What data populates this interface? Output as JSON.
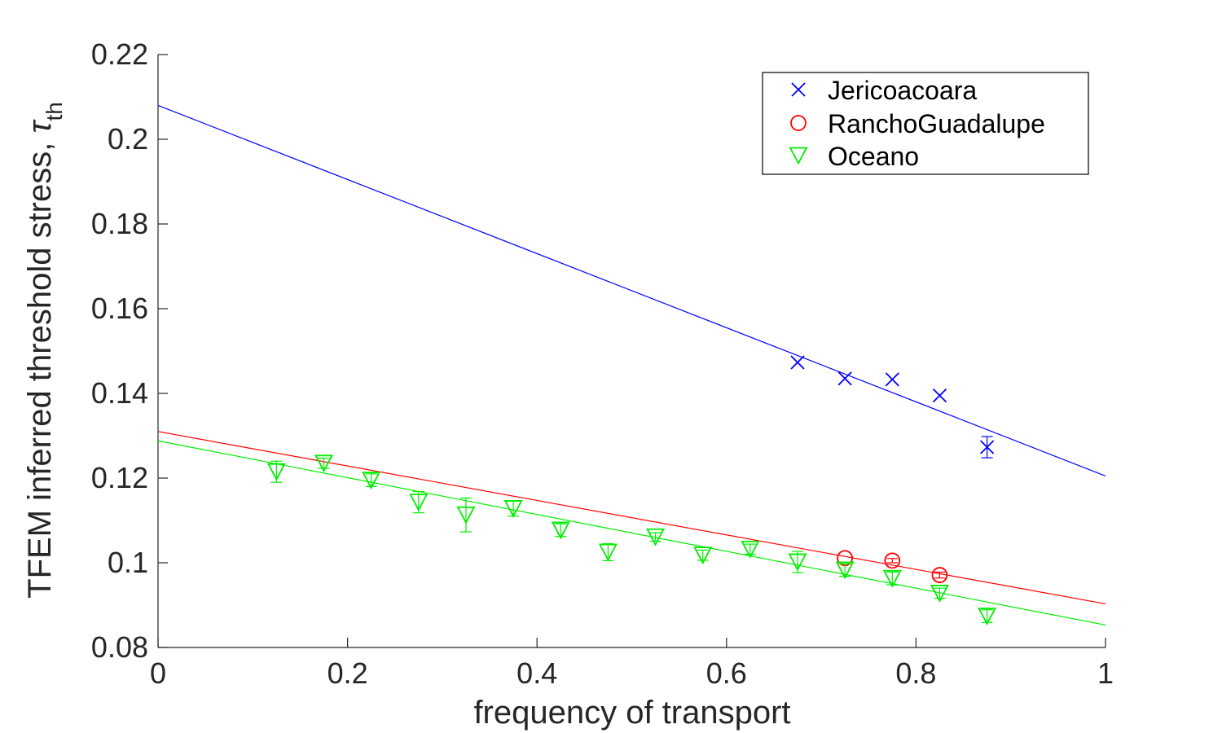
{
  "chart_data": {
    "type": "scatter",
    "title": "",
    "xlabel": "frequency of transport",
    "ylabel": "TFEM inferred threshold stress, ",
    "ylabel_symbol": "τ",
    "ylabel_subscript": "th",
    "xlim": [
      0,
      1
    ],
    "ylim": [
      0.08,
      0.22
    ],
    "x_ticks": [
      "0",
      "0.2",
      "0.4",
      "0.6",
      "0.8",
      "1"
    ],
    "y_ticks": [
      "0.08",
      "0.1",
      "0.12",
      "0.14",
      "0.16",
      "0.18",
      "0.2",
      "0.22"
    ],
    "x_tick_values": [
      0,
      0.2,
      0.4,
      0.6,
      0.8,
      1
    ],
    "y_tick_values": [
      0.08,
      0.1,
      0.12,
      0.14,
      0.16,
      0.18,
      0.2,
      0.22
    ],
    "grid": false,
    "legend_position": "top-right",
    "series": [
      {
        "name": "Jericoacoara",
        "marker": "x",
        "color": "#0000ff",
        "x": [
          0.675,
          0.725,
          0.775,
          0.825,
          0.875
        ],
        "y": [
          0.1473,
          0.1435,
          0.1433,
          0.1395,
          0.1273
        ],
        "err": [
          0.0,
          0.0,
          0.0,
          0.0,
          0.0025
        ],
        "fit": {
          "x": [
            0,
            1
          ],
          "y": [
            0.208,
            0.1205
          ]
        }
      },
      {
        "name": "RanchoGuadalupe",
        "marker": "circle",
        "color": "#ff0000",
        "x": [
          0.725,
          0.775,
          0.825
        ],
        "y": [
          0.1011,
          0.1005,
          0.0971
        ],
        "err": [
          0.0,
          0.0005,
          0.0007
        ],
        "fit": {
          "x": [
            0,
            1
          ],
          "y": [
            0.131,
            0.0903
          ]
        }
      },
      {
        "name": "Oceano",
        "marker": "triangle-down",
        "color": "#00ee00",
        "x": [
          0.125,
          0.175,
          0.225,
          0.275,
          0.325,
          0.375,
          0.425,
          0.475,
          0.525,
          0.575,
          0.625,
          0.675,
          0.725,
          0.775,
          0.825,
          0.875
        ],
        "y": [
          0.1215,
          0.1235,
          0.1195,
          0.1143,
          0.1113,
          0.1128,
          0.1077,
          0.1025,
          0.1061,
          0.1018,
          0.1032,
          0.1002,
          0.0983,
          0.0963,
          0.0928,
          0.0874
        ],
        "err": [
          0.0025,
          0.0012,
          0.0015,
          0.0025,
          0.004,
          0.0018,
          0.0015,
          0.002,
          0.001,
          0.0012,
          0.0012,
          0.0025,
          0.0015,
          0.0015,
          0.0012,
          0.0015
        ],
        "fit": {
          "x": [
            0,
            1
          ],
          "y": [
            0.1288,
            0.0853
          ]
        }
      }
    ]
  }
}
